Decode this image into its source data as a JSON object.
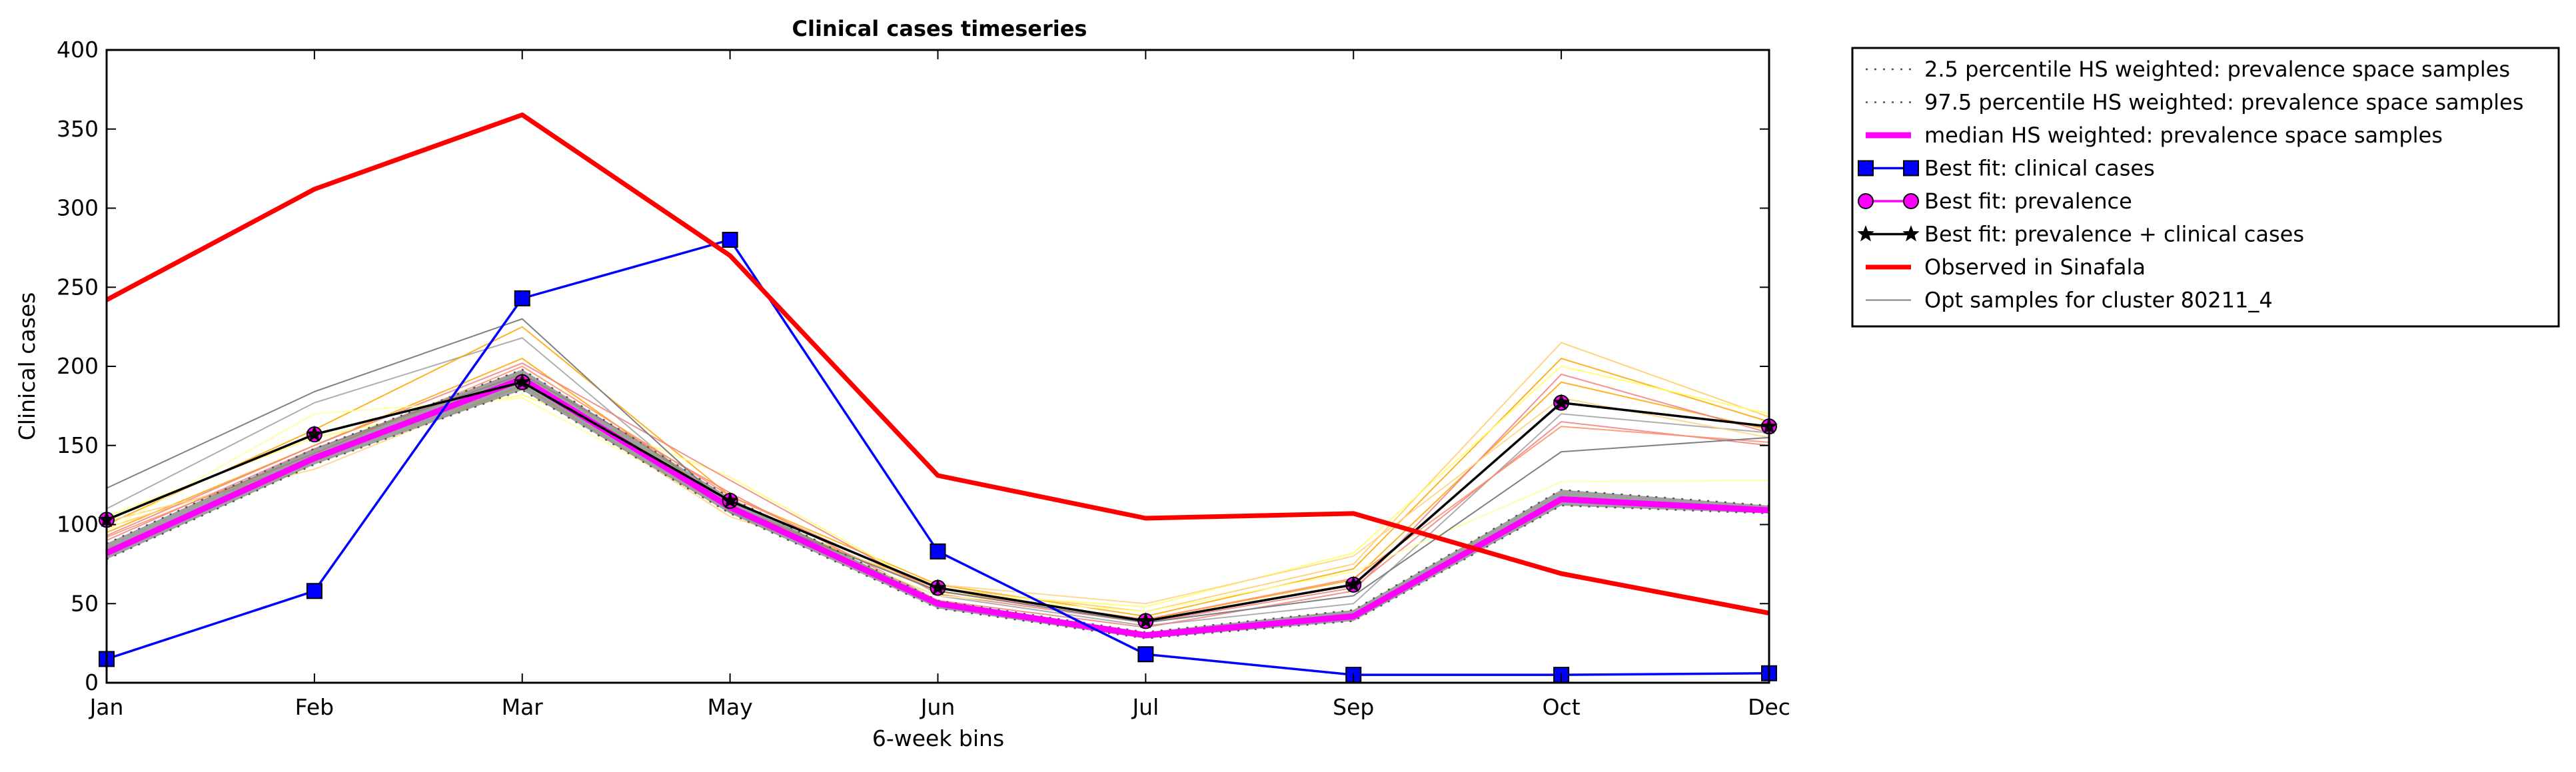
{
  "chart_data": {
    "type": "line",
    "title": "Clinical cases timeseries",
    "xlabel": "6-week bins",
    "ylabel": "Clinical cases",
    "categories": [
      "Jan",
      "Feb",
      "Mar",
      "May",
      "Jun",
      "Jul",
      "Sep",
      "Oct",
      "Dec"
    ],
    "ylim": [
      0,
      400
    ],
    "yticks": [
      0,
      50,
      100,
      150,
      200,
      250,
      300,
      350,
      400
    ],
    "grid": false,
    "legend_position": "outside-top-right",
    "series": [
      {
        "name": "2.5 percentile HS weighted: prevalence space samples",
        "color": "#555555",
        "style": "dotted",
        "values": [
          78,
          138,
          185,
          107,
          47,
          28,
          39,
          112,
          107
        ]
      },
      {
        "name": "97.5 percentile HS weighted: prevalence space samples",
        "color": "#555555",
        "style": "dotted",
        "values": [
          88,
          148,
          198,
          117,
          52,
          32,
          46,
          122,
          112
        ]
      },
      {
        "name": "median HS weighted: prevalence space samples",
        "color": "#ff00ff",
        "style": "solid-thick",
        "values": [
          82,
          142,
          192,
          111,
          50,
          30,
          42,
          116,
          109
        ]
      },
      {
        "name": "Best fit: clinical cases",
        "color": "#0000ff",
        "marker": "square",
        "values": [
          15,
          58,
          243,
          280,
          83,
          18,
          5,
          5,
          6
        ]
      },
      {
        "name": "Best fit: prevalence",
        "color": "#ff00ff",
        "marker": "circle",
        "values": [
          103,
          157,
          190,
          115,
          60,
          39,
          62,
          177,
          162
        ]
      },
      {
        "name": "Best fit: prevalence + clinical cases",
        "color": "#000000",
        "marker": "star",
        "values": [
          103,
          157,
          190,
          115,
          60,
          39,
          62,
          177,
          162
        ]
      },
      {
        "name": "Observed in Sinafala",
        "color": "#ff0000",
        "style": "solid-thick",
        "values": [
          242,
          312,
          359,
          270,
          131,
          104,
          107,
          69,
          44
        ]
      },
      {
        "name": "Opt samples for cluster 80211_4",
        "color": "#808080",
        "style": "thin",
        "values": [
          123,
          184,
          230,
          110,
          58,
          38,
          55,
          146,
          155
        ]
      }
    ],
    "sample_lines": [
      {
        "color": "#a0a0a0",
        "values": [
          110,
          177,
          218,
          108,
          55,
          36,
          50,
          170,
          158
        ]
      },
      {
        "color": "#ffa500",
        "values": [
          100,
          160,
          225,
          118,
          62,
          42,
          72,
          205,
          165
        ]
      },
      {
        "color": "#ffa500",
        "values": [
          95,
          150,
          205,
          112,
          58,
          40,
          65,
          190,
          160
        ]
      },
      {
        "color": "#ffcc66",
        "values": [
          98,
          140,
          192,
          115,
          60,
          45,
          75,
          215,
          168
        ]
      },
      {
        "color": "#ffff66",
        "values": [
          105,
          155,
          182,
          130,
          57,
          48,
          82,
          200,
          170
        ]
      },
      {
        "color": "#f08080",
        "values": [
          93,
          150,
          202,
          128,
          56,
          38,
          60,
          165,
          150
        ]
      },
      {
        "color": "#f08080",
        "values": [
          90,
          148,
          195,
          120,
          52,
          35,
          58,
          195,
          158
        ]
      },
      {
        "color": "#ffd27f",
        "values": [
          102,
          135,
          188,
          105,
          62,
          50,
          80,
          180,
          155
        ]
      },
      {
        "color": "#ffff99",
        "values": [
          96,
          170,
          180,
          110,
          55,
          45,
          70,
          127,
          128
        ]
      },
      {
        "color": "#ff8c66",
        "values": [
          92,
          145,
          200,
          118,
          58,
          40,
          66,
          162,
          152
        ]
      }
    ]
  }
}
